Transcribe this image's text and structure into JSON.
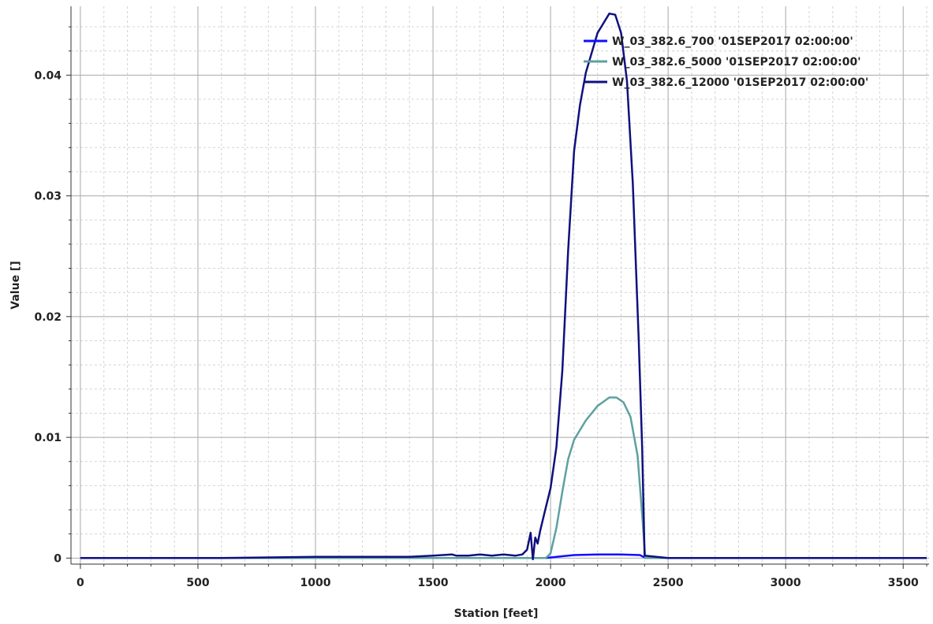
{
  "chart_data": {
    "type": "line",
    "xlabel": "Station [feet]",
    "ylabel": "Value []",
    "xlim": [
      -40,
      3610
    ],
    "ylim": [
      -0.0005,
      0.0457
    ],
    "x_ticks": [
      0,
      500,
      1000,
      1500,
      2000,
      2500,
      3000,
      3500
    ],
    "x_tick_labels": [
      "0",
      "500",
      "1000",
      "1500",
      "2000",
      "2500",
      "3000",
      "3500"
    ],
    "y_ticks": [
      0,
      0.01,
      0.02,
      0.03,
      0.04
    ],
    "y_tick_labels": [
      "0",
      "0.01",
      "0.02",
      "0.03",
      "0.04"
    ],
    "grid": true,
    "legend_position": "top-right",
    "series": [
      {
        "name": "W_03_382.6_700 '01SEP2017 02:00:00'",
        "color": "#1010ff",
        "x": [
          0,
          1000,
          1500,
          1900,
          1980,
          2050,
          2100,
          2200,
          2300,
          2380,
          2405,
          2500,
          3000,
          3600
        ],
        "y": [
          0,
          0,
          0,
          0,
          0,
          0.00015,
          0.00025,
          0.0003,
          0.0003,
          0.00025,
          0,
          0,
          0,
          0
        ]
      },
      {
        "name": "W_03_382.6_5000 '01SEP2017 02:00:00'",
        "color": "#5fa0a0",
        "x": [
          0,
          1000,
          1500,
          1900,
          1980,
          2000,
          2025,
          2050,
          2075,
          2100,
          2150,
          2200,
          2250,
          2280,
          2310,
          2340,
          2370,
          2390,
          2403,
          2500,
          3000,
          3600
        ],
        "y": [
          0,
          0,
          0,
          0,
          0,
          0.0004,
          0.0025,
          0.0055,
          0.0082,
          0.0098,
          0.0114,
          0.0126,
          0.0133,
          0.0133,
          0.0129,
          0.0117,
          0.0085,
          0.0035,
          0,
          0,
          0,
          0
        ]
      },
      {
        "name": "W_03_382.6_12000 '01SEP2017 02:00:00'",
        "color": "#10107f",
        "x": [
          0,
          600,
          1000,
          1200,
          1400,
          1500,
          1580,
          1600,
          1650,
          1700,
          1750,
          1800,
          1850,
          1880,
          1900,
          1915,
          1925,
          1935,
          1945,
          1955,
          1975,
          2000,
          2025,
          2050,
          2075,
          2100,
          2125,
          2150,
          2200,
          2250,
          2275,
          2300,
          2325,
          2350,
          2375,
          2390,
          2400,
          2500,
          3000,
          3600
        ],
        "y": [
          0,
          0,
          0.0001,
          0.0001,
          0.0001,
          0.0002,
          0.0003,
          0.0002,
          0.0002,
          0.0003,
          0.0002,
          0.0003,
          0.0002,
          0.0003,
          0.0007,
          0.0021,
          -0.0001,
          0.0017,
          0.0012,
          0.0022,
          0.0038,
          0.0058,
          0.0092,
          0.0155,
          0.0255,
          0.0337,
          0.0375,
          0.0402,
          0.0435,
          0.0451,
          0.045,
          0.0435,
          0.0395,
          0.031,
          0.018,
          0.009,
          0.0002,
          0,
          0,
          0
        ]
      }
    ]
  }
}
